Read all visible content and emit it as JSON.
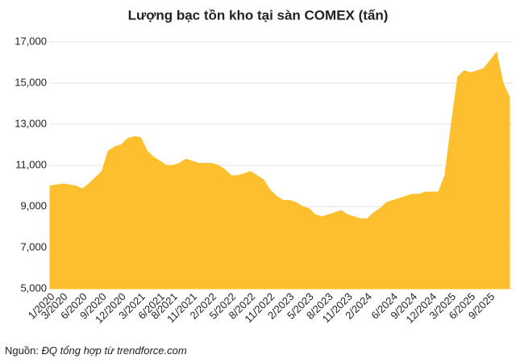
{
  "chart_data": {
    "type": "area",
    "title": "Lượng bạc tồn kho tại sàn COMEX (tấn)",
    "categories": [
      "1/2020",
      null,
      "3/2020",
      null,
      null,
      "6/2020",
      null,
      null,
      "9/2020",
      null,
      null,
      "12/2020",
      null,
      null,
      "3/2021",
      null,
      null,
      "6/2021",
      null,
      "8/2021",
      null,
      null,
      "11/2021",
      null,
      null,
      "2/2022",
      null,
      null,
      "5/2022",
      null,
      null,
      "8/2022",
      null,
      null,
      "11/2022",
      null,
      null,
      "2/2023",
      null,
      null,
      "5/2023",
      null,
      null,
      "8/2023",
      null,
      null,
      "11/2023",
      null,
      null,
      "2/2024",
      null,
      null,
      null,
      "6/2024",
      null,
      null,
      "9/2024",
      null,
      null,
      "12/2024",
      null,
      null,
      "3/2025",
      null,
      null,
      "6/2025",
      null,
      null,
      "9/2025",
      null,
      null,
      null
    ],
    "values": [
      10000,
      10050,
      10100,
      10050,
      10000,
      9850,
      10100,
      10400,
      10700,
      11700,
      11900,
      12000,
      12300,
      12400,
      12350,
      11700,
      11400,
      11200,
      11000,
      11000,
      11100,
      11300,
      11200,
      11100,
      11100,
      11100,
      11000,
      10800,
      10500,
      10500,
      10600,
      10700,
      10500,
      10300,
      9800,
      9500,
      9300,
      9300,
      9200,
      9000,
      8900,
      8600,
      8500,
      8600,
      8700,
      8800,
      8600,
      8500,
      8400,
      8400,
      8700,
      8900,
      9200,
      9300,
      9400,
      9500,
      9600,
      9600,
      9700,
      9700,
      9700,
      10500,
      13000,
      15300,
      15600,
      15500,
      15600,
      15700,
      16100,
      16500,
      15000,
      14300
    ],
    "color": "#fdbf2d",
    "ylim": [
      5000,
      17000
    ],
    "yticks": [
      {
        "value": 5000,
        "label": "5,000"
      },
      {
        "value": 7000,
        "label": "7,000"
      },
      {
        "value": 9000,
        "label": "9,000"
      },
      {
        "value": 11000,
        "label": "11,000"
      },
      {
        "value": 13000,
        "label": "13,000"
      },
      {
        "value": 15000,
        "label": "15,000"
      },
      {
        "value": 17000,
        "label": "17,000"
      }
    ],
    "grid": true,
    "source": {
      "label": "Nguồn:",
      "text": "ĐQ tổng hợp từ trendforce.com"
    }
  }
}
